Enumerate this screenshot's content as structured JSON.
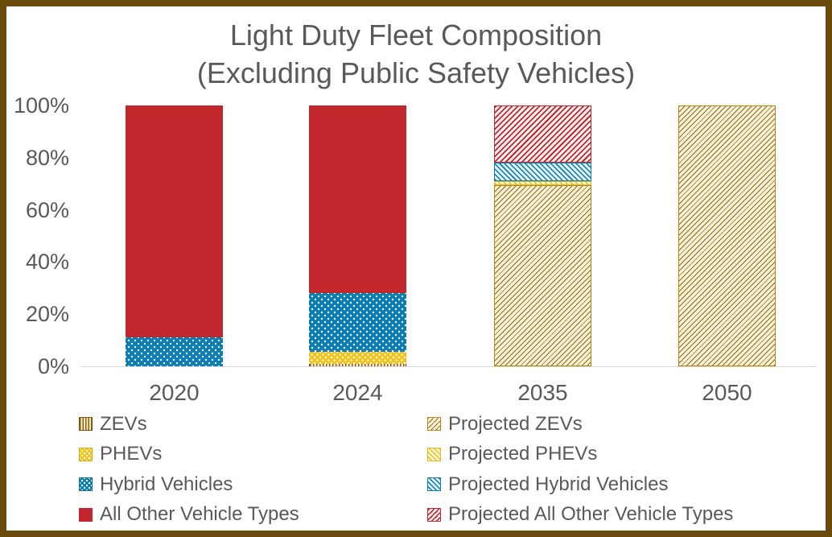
{
  "header": {
    "title_line1": "Light Duty Fleet Composition",
    "title_line2": "(Excluding Public Safety Vehicles)"
  },
  "chart_data": {
    "type": "bar",
    "variant": "stacked-100-percent",
    "title": "Light Duty Fleet Composition (Excluding Public Safety Vehicles)",
    "categories": [
      "2020",
      "2024",
      "2035",
      "2050"
    ],
    "series": [
      {
        "name": "ZEVs",
        "key": "zev",
        "values": [
          0,
          1,
          0,
          0
        ],
        "pattern": "vertical-hatch gold on cream"
      },
      {
        "name": "PHEVs",
        "key": "phev",
        "values": [
          0,
          4.5,
          0,
          0
        ],
        "pattern": "yellow with white dots"
      },
      {
        "name": "Hybrid Vehicles",
        "key": "hybrid",
        "values": [
          11,
          22.5,
          0,
          0
        ],
        "pattern": "blue with white dots"
      },
      {
        "name": "All Other Vehicle Types",
        "key": "other",
        "values": [
          89,
          72,
          0,
          0
        ],
        "pattern": "solid red"
      },
      {
        "name": "Projected ZEVs",
        "key": "proj_zev",
        "values": [
          0,
          0,
          69.5,
          100
        ],
        "pattern": "gold / diagonal hatch on cream"
      },
      {
        "name": "Projected PHEVs",
        "key": "proj_phev",
        "values": [
          0,
          0,
          1.5,
          0
        ],
        "pattern": "yellow \\ diagonal hatch"
      },
      {
        "name": "Projected Hybrid Vehicles",
        "key": "proj_hybrid",
        "values": [
          0,
          0,
          7,
          0
        ],
        "pattern": "blue \\ diagonal hatch"
      },
      {
        "name": "Projected All Other Vehicle Types",
        "key": "proj_other",
        "values": [
          0,
          0,
          22,
          0
        ],
        "pattern": "red / diagonal hatch"
      }
    ],
    "ylim": [
      0,
      100
    ],
    "ytick_labels": [
      "0%",
      "20%",
      "40%",
      "60%",
      "80%",
      "100%"
    ],
    "ytick_values": [
      0,
      20,
      40,
      60,
      80,
      100
    ],
    "grid": false,
    "legend_position": "bottom, two columns"
  },
  "legend": {
    "columns": [
      {
        "items": [
          {
            "label": "ZEVs",
            "key": "zev"
          },
          {
            "label": "PHEVs",
            "key": "phev"
          },
          {
            "label": "Hybrid Vehicles",
            "key": "hybrid"
          },
          {
            "label": "All Other Vehicle Types",
            "key": "other"
          }
        ]
      },
      {
        "items": [
          {
            "label": "Projected ZEVs",
            "key": "proj_zev"
          },
          {
            "label": "Projected PHEVs",
            "key": "proj_phev"
          },
          {
            "label": "Projected Hybrid Vehicles",
            "key": "proj_hybrid"
          },
          {
            "label": "Projected All Other Vehicle Types",
            "key": "proj_other"
          }
        ]
      }
    ]
  },
  "colors": {
    "red": "#C2272E",
    "blue": "#0B7EB5",
    "yellow": "#F2C31C",
    "gold_hatch": "#8F6A12",
    "cream": "#FBF2DA",
    "text_gray": "#595959",
    "frame_brown": "#6B4A0D",
    "axis_gray": "#D9D9D9"
  }
}
